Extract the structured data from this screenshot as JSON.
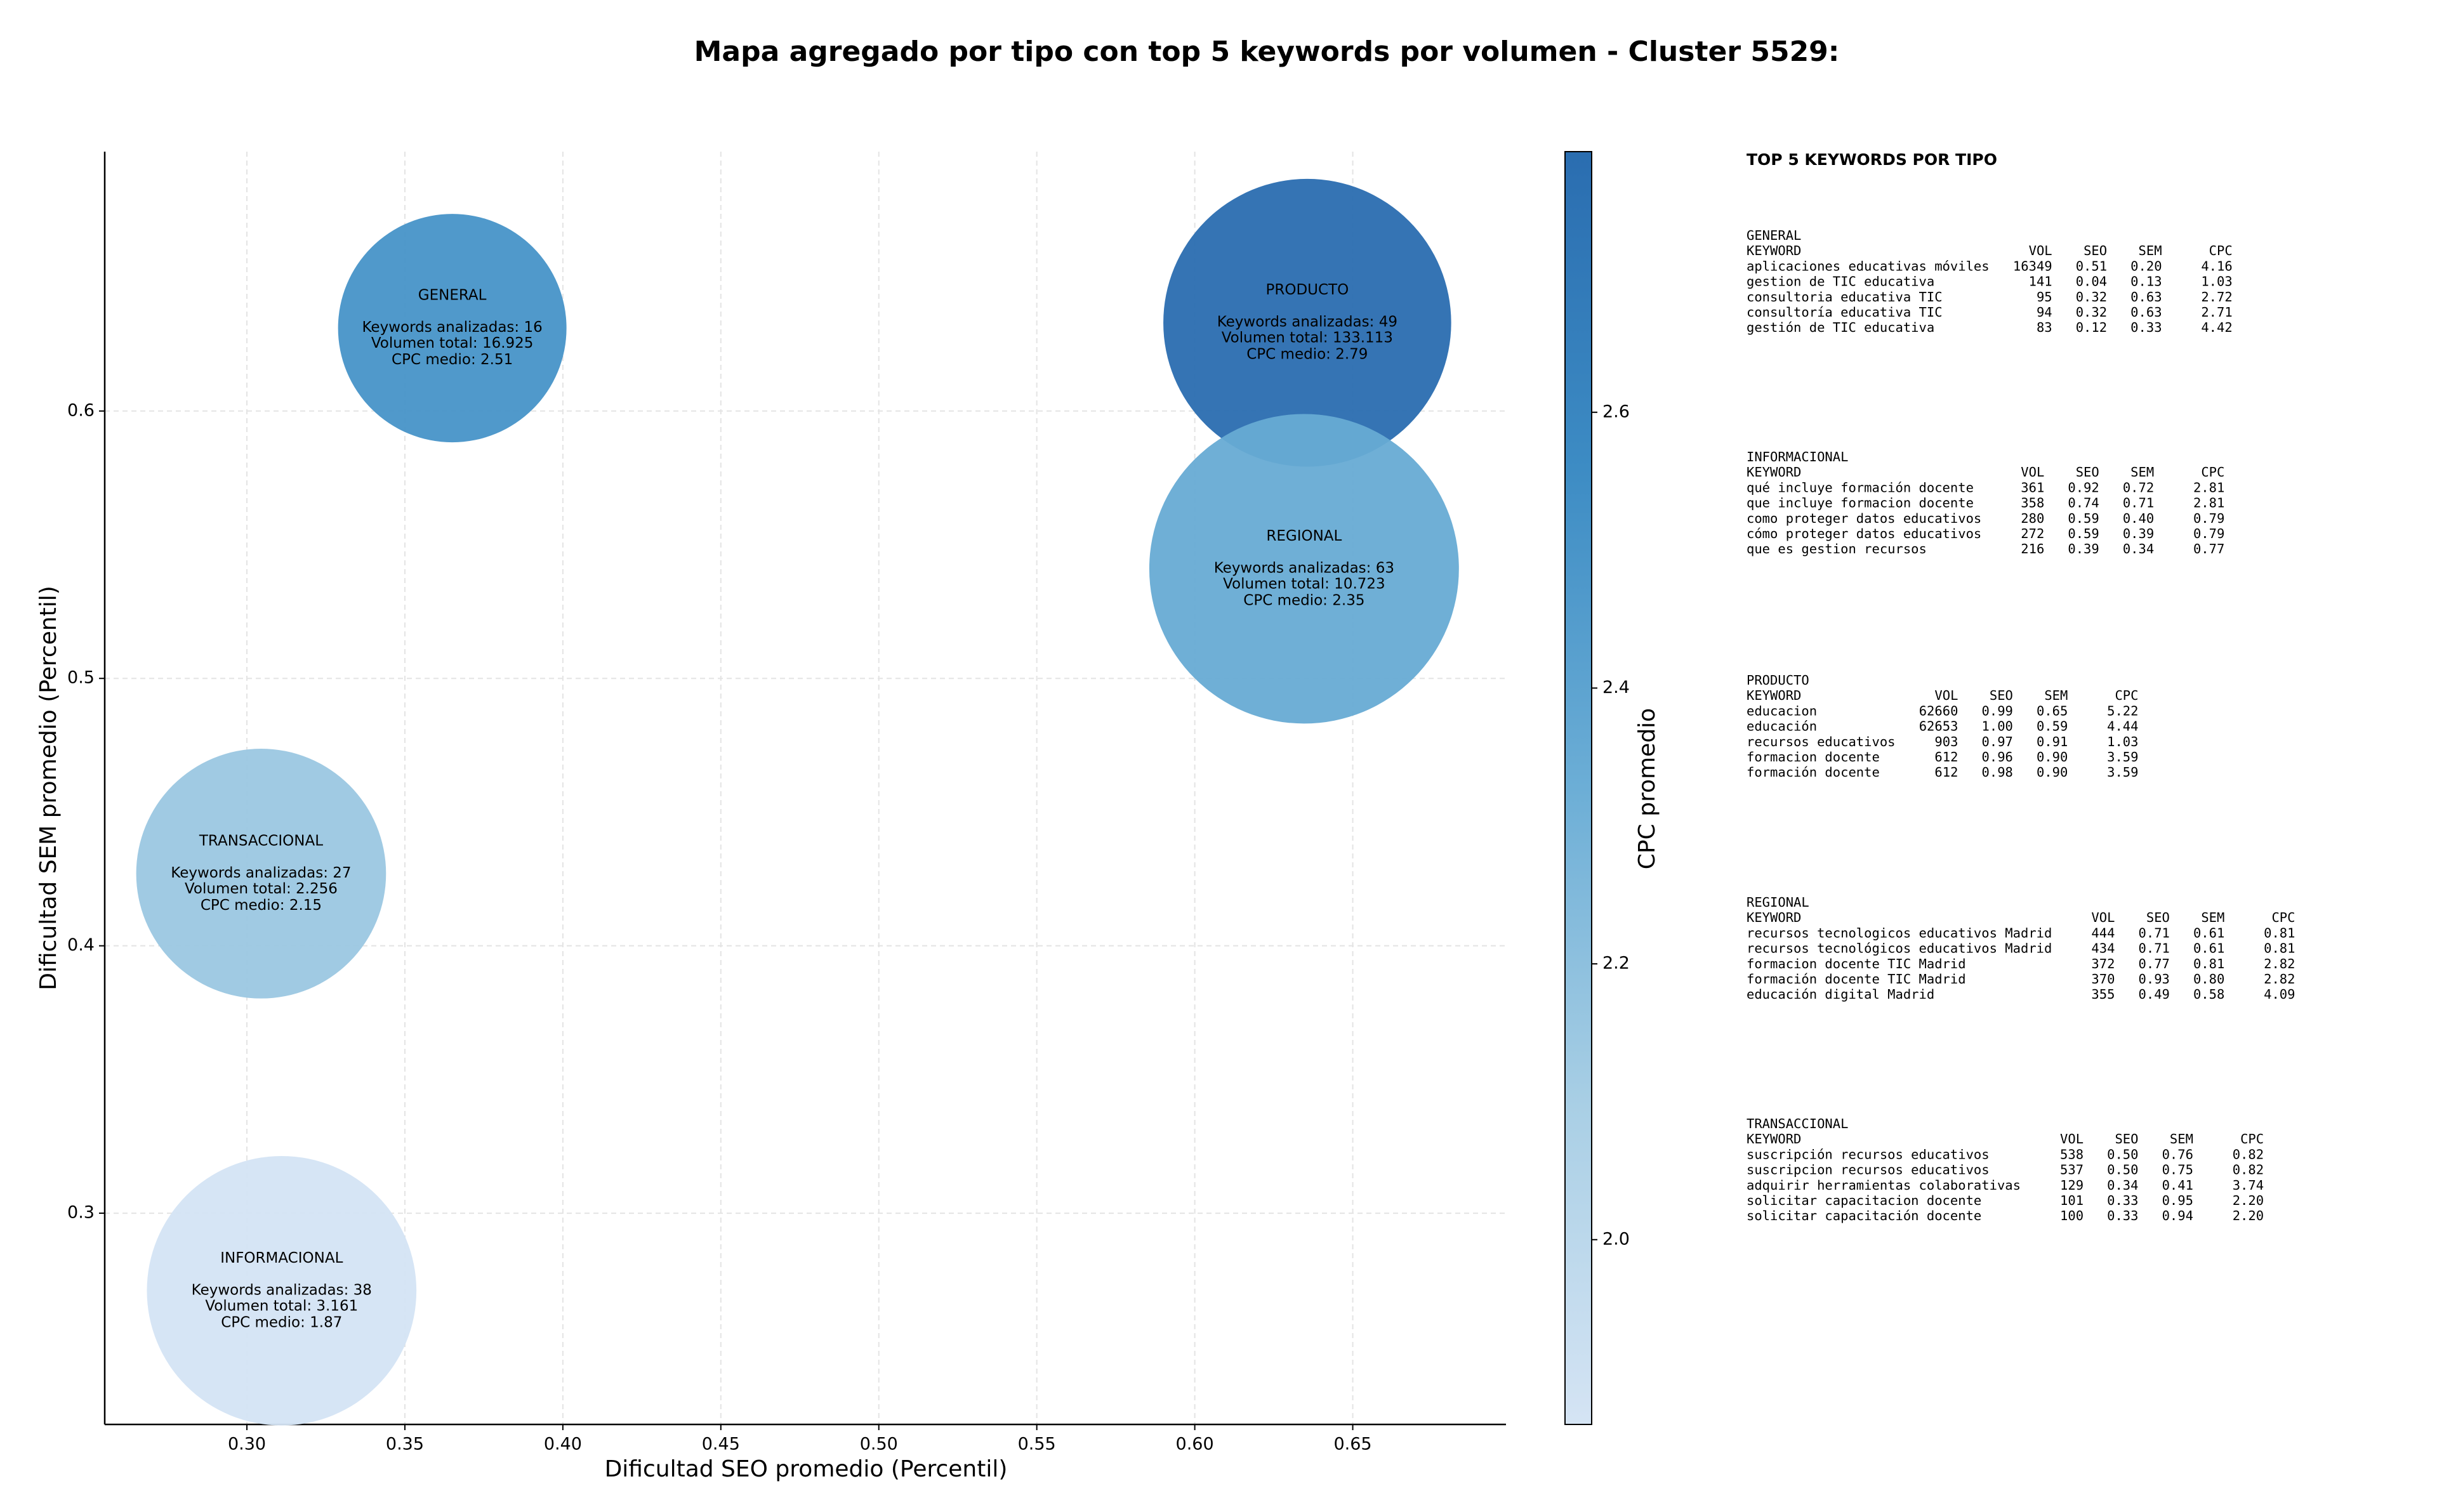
{
  "chart_data": {
    "type": "bubble",
    "title": "Mapa agregado por tipo con top 5 keywords por volumen - Cluster 5529:",
    "x_label": "Dificultad SEO promedio (Percentil)",
    "y_label": "Dificultad SEM promedio (Percentil)",
    "xlim": [
      0.255,
      0.6985
    ],
    "ylim": [
      0.221,
      0.697
    ],
    "xticks": [
      {
        "value": 0.3,
        "label": "0.30"
      },
      0.35,
      {
        "value": 0.4,
        "label": "0.40"
      },
      0.45,
      {
        "value": 0.5,
        "label": "0.50"
      },
      0.55,
      {
        "value": 0.6,
        "label": "0.60"
      },
      0.65
    ],
    "yticks": [
      0.3,
      0.4,
      0.5,
      0.6
    ],
    "grid": true,
    "categories": [
      "GENERAL",
      "PRODUCTO",
      "REGIONAL",
      "TRANSACCIONAL",
      "INFORMACIONAL"
    ],
    "x": [
      0.365,
      0.6356,
      0.6346,
      0.3045,
      0.311
    ],
    "values": [
      0.631,
      0.633,
      0.541,
      0.427,
      0.271
    ],
    "keywords_prefix": "Keywords analizadas: ",
    "keywords": [
      16,
      49,
      63,
      27,
      38
    ],
    "volume_prefix": "Volumen total: ",
    "volumes": [
      16925,
      133113,
      10723,
      2256,
      3161
    ],
    "volume_labels": [
      "16.925",
      "133.113",
      "10.723",
      "2.256",
      "3.161"
    ],
    "cpc_prefix": "CPC medio: ",
    "cpc": [
      2.51,
      2.79,
      2.35,
      2.15,
      1.87
    ],
    "colorbar": {
      "label": "CPC promedio",
      "lim": [
        1.866,
        2.789
      ],
      "ticks": [
        {
          "value": 2,
          "label": "2.0"
        },
        2.2,
        2.4,
        2.6
      ],
      "colormap": [
        "#d5e4f4",
        "#a9cfe5",
        "#6caed6",
        "#3d8cc4",
        "#2a6db0"
      ]
    },
    "panel": {
      "title": "TOP 5 KEYWORDS POR TIPO",
      "groups": [
        {
          "name": "GENERAL",
          "header": [
            "KEYWORD",
            "VOL",
            "SEO",
            "SEM",
            "CPC"
          ],
          "rows": [
            [
              "aplicaciones educativas móviles",
              "16349",
              "0.51",
              "0.20",
              "4.16"
            ],
            [
              "gestion de TIC educativa",
              "141",
              "0.04",
              "0.13",
              "1.03"
            ],
            [
              "consultoria educativa TIC",
              "95",
              "0.32",
              "0.63",
              "2.72"
            ],
            [
              "consultoría educativa TIC",
              "94",
              "0.32",
              "0.63",
              "2.71"
            ],
            [
              "gestión de TIC educativa",
              "83",
              "0.12",
              "0.33",
              "4.42"
            ]
          ]
        },
        {
          "name": "INFORMACIONAL",
          "header": [
            "KEYWORD",
            "VOL",
            "SEO",
            "SEM",
            "CPC"
          ],
          "rows": [
            [
              "qué incluye formación docente",
              "361",
              "0.92",
              "0.72",
              "2.81"
            ],
            [
              "que incluye formacion docente",
              "358",
              "0.74",
              "0.71",
              "2.81"
            ],
            [
              "como proteger datos educativos",
              "280",
              "0.59",
              "0.40",
              "0.79"
            ],
            [
              "cómo proteger datos educativos",
              "272",
              "0.59",
              "0.39",
              "0.79"
            ],
            [
              "que es gestion recursos",
              "216",
              "0.39",
              "0.34",
              "0.77"
            ]
          ]
        },
        {
          "name": "PRODUCTO",
          "header": [
            "KEYWORD",
            "VOL",
            "SEO",
            "SEM",
            "CPC"
          ],
          "rows": [
            [
              "educacion",
              "62660",
              "0.99",
              "0.65",
              "5.22"
            ],
            [
              "educación",
              "62653",
              "1.00",
              "0.59",
              "4.44"
            ],
            [
              "recursos educativos",
              "903",
              "0.97",
              "0.91",
              "1.03"
            ],
            [
              "formacion docente",
              "612",
              "0.96",
              "0.90",
              "3.59"
            ],
            [
              "formación docente",
              "612",
              "0.98",
              "0.90",
              "3.59"
            ]
          ]
        },
        {
          "name": "REGIONAL",
          "header": [
            "KEYWORD",
            "VOL",
            "SEO",
            "SEM",
            "CPC"
          ],
          "rows": [
            [
              "recursos tecnologicos educativos Madrid",
              "444",
              "0.71",
              "0.61",
              "0.81"
            ],
            [
              "recursos tecnológicos educativos Madrid",
              "434",
              "0.71",
              "0.61",
              "0.81"
            ],
            [
              "formacion docente TIC Madrid",
              "372",
              "0.77",
              "0.81",
              "2.82"
            ],
            [
              "formación docente TIC Madrid",
              "370",
              "0.93",
              "0.80",
              "2.82"
            ],
            [
              "educación digital Madrid",
              "355",
              "0.49",
              "0.58",
              "4.09"
            ]
          ]
        },
        {
          "name": "TRANSACCIONAL",
          "header": [
            "KEYWORD",
            "VOL",
            "SEO",
            "SEM",
            "CPC"
          ],
          "rows": [
            [
              "suscripción recursos educativos",
              "538",
              "0.50",
              "0.76",
              "0.82"
            ],
            [
              "suscripcion recursos educativos",
              "537",
              "0.50",
              "0.75",
              "0.82"
            ],
            [
              "adquirir herramientas colaborativas",
              "129",
              "0.34",
              "0.41",
              "3.74"
            ],
            [
              "solicitar capacitacion docente",
              "101",
              "0.33",
              "0.95",
              "2.20"
            ],
            [
              "solicitar capacitación docente",
              "100",
              "0.33",
              "0.94",
              "2.20"
            ]
          ]
        }
      ]
    }
  }
}
